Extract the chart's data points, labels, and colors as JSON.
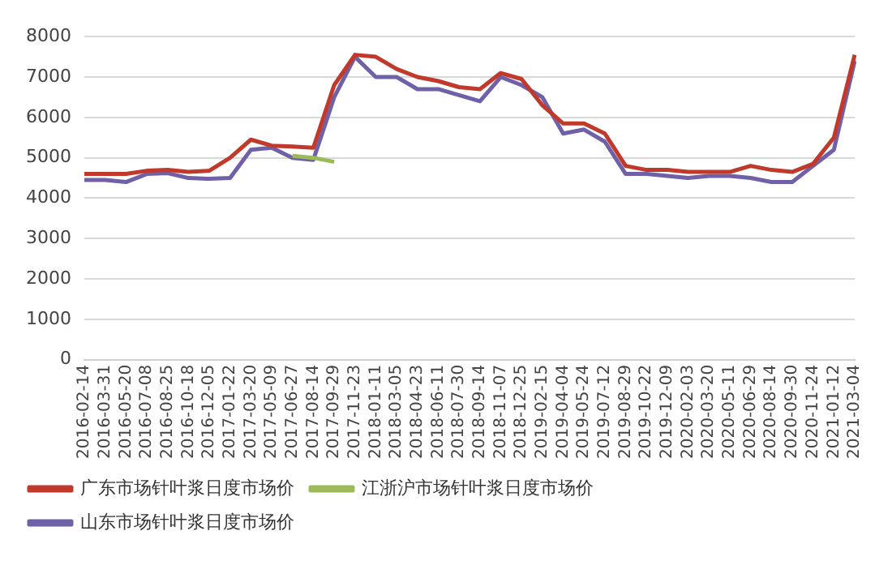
{
  "chart_data": {
    "type": "line",
    "categories": [
      "2016-02-14",
      "2016-03-31",
      "2016-05-20",
      "2016-07-08",
      "2016-08-25",
      "2016-10-18",
      "2016-12-05",
      "2017-01-22",
      "2017-03-20",
      "2017-05-09",
      "2017-06-27",
      "2017-08-14",
      "2017-09-29",
      "2017-11-23",
      "2018-01-11",
      "2018-03-05",
      "2018-04-23",
      "2018-06-11",
      "2018-07-30",
      "2018-09-14",
      "2018-11-07",
      "2018-12-25",
      "2019-02-15",
      "2019-04-04",
      "2019-05-24",
      "2019-07-12",
      "2019-08-29",
      "2019-10-22",
      "2019-12-09",
      "2020-02-03",
      "2020-03-20",
      "2020-05-11",
      "2020-06-29",
      "2020-08-14",
      "2020-09-30",
      "2020-11-24",
      "2021-01-12",
      "2021-03-04"
    ],
    "series": [
      {
        "name": "广东市场针叶浆日度市场价",
        "color": "#c0392b",
        "values": [
          4600,
          4600,
          4600,
          4680,
          4700,
          4650,
          4680,
          5000,
          5450,
          5300,
          5280,
          5250,
          6800,
          7550,
          7500,
          7200,
          7000,
          6900,
          6750,
          6700,
          7100,
          6950,
          6300,
          5850,
          5850,
          5600,
          4800,
          4700,
          4700,
          4650,
          4650,
          4650,
          4800,
          4700,
          4650,
          4850,
          5500,
          7550
        ]
      },
      {
        "name": "江浙沪市场针叶浆日度市场价",
        "color": "#9bbb59",
        "values": [
          null,
          null,
          null,
          null,
          null,
          null,
          null,
          null,
          null,
          null,
          5050,
          5000,
          4900,
          null,
          null,
          null,
          null,
          null,
          null,
          null,
          null,
          null,
          null,
          null,
          null,
          null,
          null,
          null,
          null,
          null,
          null,
          null,
          null,
          null,
          null,
          null,
          null,
          null
        ]
      },
      {
        "name": "山东市场针叶浆日度市场价",
        "color": "#7060a8",
        "values": [
          4450,
          4450,
          4400,
          4600,
          4620,
          4500,
          4480,
          4500,
          5200,
          5250,
          5000,
          4950,
          6500,
          7500,
          7000,
          7000,
          6700,
          6700,
          6550,
          6400,
          7000,
          6800,
          6500,
          5600,
          5700,
          5400,
          4600,
          4600,
          4550,
          4500,
          4550,
          4550,
          4500,
          4400,
          4400,
          4800,
          5200,
          7400
        ]
      }
    ],
    "ylim": [
      0,
      8000
    ],
    "yticks": [
      0,
      1000,
      2000,
      3000,
      4000,
      5000,
      6000,
      7000,
      8000
    ],
    "grid": "y",
    "legend": "bottom",
    "marker": "none",
    "line_style": "solid"
  }
}
